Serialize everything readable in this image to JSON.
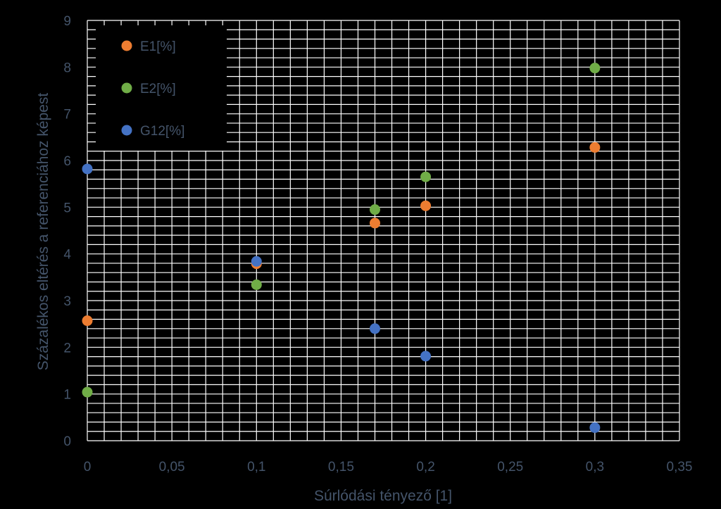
{
  "chart_data": {
    "type": "scatter",
    "title": "",
    "xlabel": "Súrlódási tényező [1]",
    "ylabel": "Százalékos eltérés a referenciához képest",
    "xlim": [
      0,
      0.35
    ],
    "ylim": [
      0,
      9
    ],
    "x_ticks": [
      "0",
      "0,05",
      "0,1",
      "0,15",
      "0,2",
      "0,25",
      "0,3",
      "0,35"
    ],
    "y_ticks": [
      "0",
      "1",
      "2",
      "3",
      "4",
      "5",
      "6",
      "7",
      "8",
      "9"
    ],
    "grid": true,
    "legend_position": "top-left",
    "series": [
      {
        "name": "E1[%]",
        "color": "#ED7D31",
        "points": [
          {
            "x": 0,
            "y": 2.57
          },
          {
            "x": 0.1,
            "y": 3.79
          },
          {
            "x": 0.17,
            "y": 4.66
          },
          {
            "x": 0.2,
            "y": 5.03
          },
          {
            "x": 0.3,
            "y": 6.28
          }
        ]
      },
      {
        "name": "E2[%]",
        "color": "#70AD47",
        "points": [
          {
            "x": 0,
            "y": 1.04
          },
          {
            "x": 0.1,
            "y": 3.34
          },
          {
            "x": 0.17,
            "y": 4.95
          },
          {
            "x": 0.2,
            "y": 5.65
          },
          {
            "x": 0.3,
            "y": 7.98
          }
        ]
      },
      {
        "name": "G12[%]",
        "color": "#4472C4",
        "points": [
          {
            "x": 0,
            "y": 5.82
          },
          {
            "x": 0.1,
            "y": 3.84
          },
          {
            "x": 0.17,
            "y": 2.4
          },
          {
            "x": 0.2,
            "y": 1.81
          },
          {
            "x": 0.3,
            "y": 0.28
          }
        ]
      }
    ]
  }
}
